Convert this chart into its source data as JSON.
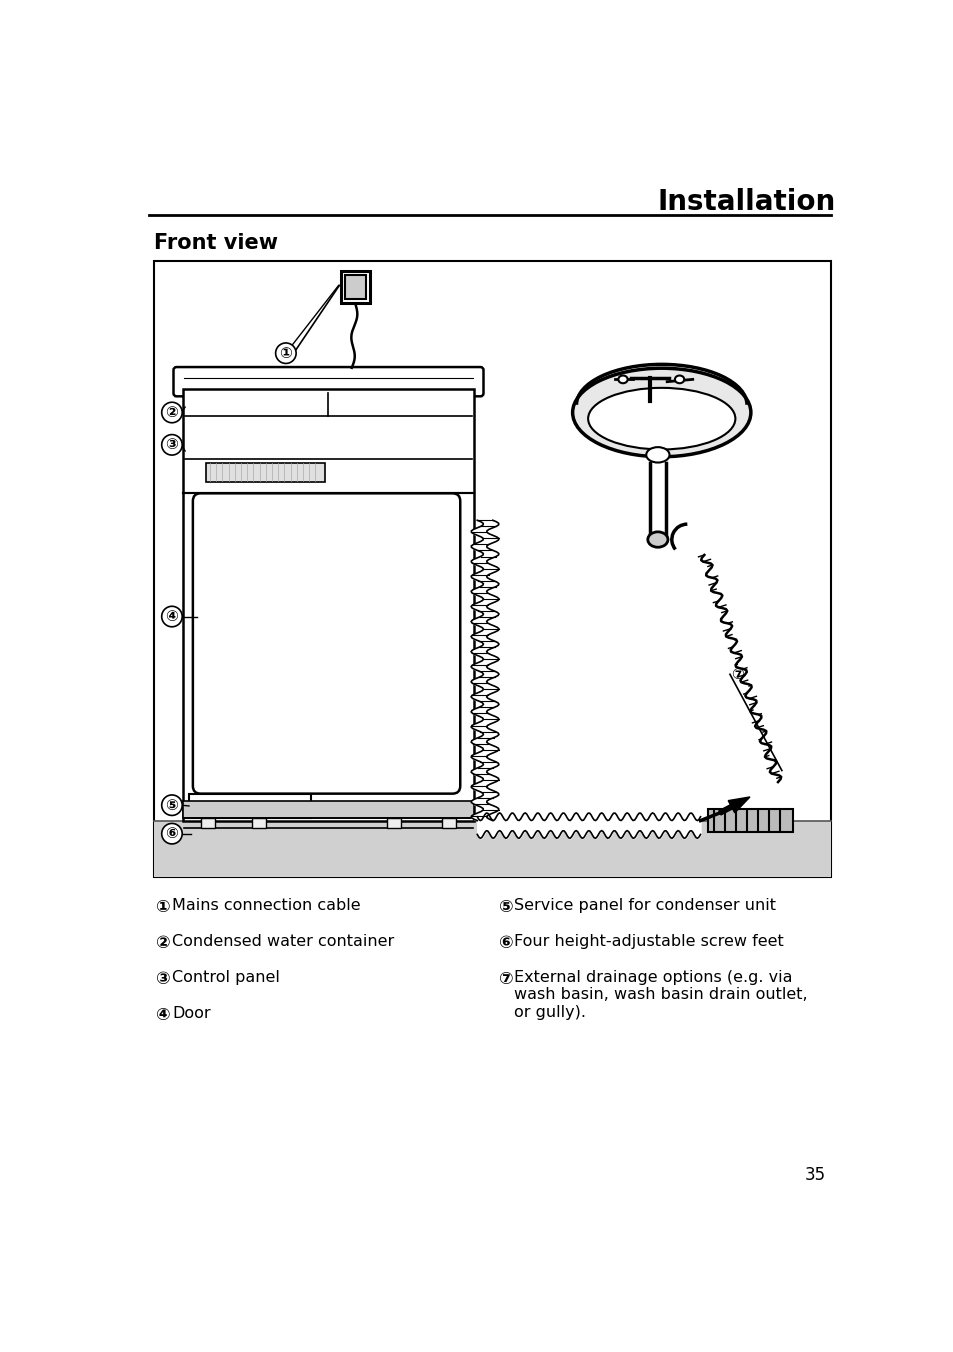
{
  "title": "Installation",
  "subtitle": "Front view",
  "page_number": "35",
  "bg": "#ffffff",
  "labels": {
    "1": "Mains connection cable",
    "2": "Condensed water container",
    "3": "Control panel",
    "4": "Door",
    "5": "Service panel for condenser unit",
    "6": "Four height-adjustable screw feet",
    "7": "External drainage options (e.g. via\nwash basin, wash basin drain outlet,\nor gully)."
  },
  "title_fs": 20,
  "subtitle_fs": 15,
  "legend_fs": 11.5,
  "num_fs": 11,
  "page_fs": 12
}
